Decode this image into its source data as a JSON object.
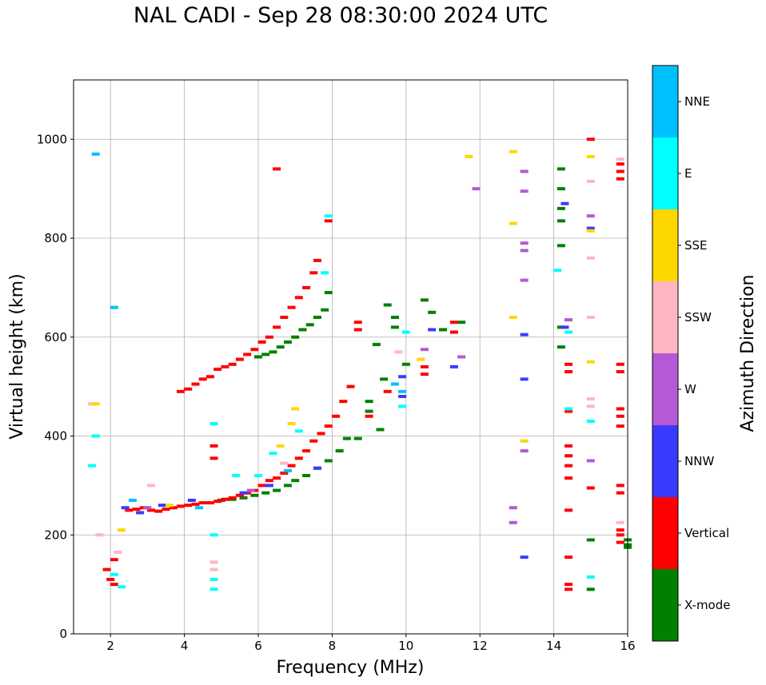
{
  "figure": {
    "title": "NAL CADI - Sep 28 08:30:00 2024 UTC"
  },
  "colorbar": {
    "label": "Azimuth Direction",
    "categories": [
      {
        "name": "X-mode",
        "color": "#008000"
      },
      {
        "name": "Vertical",
        "color": "#ff0000"
      },
      {
        "name": "NNW",
        "color": "#3a3aff"
      },
      {
        "name": "W",
        "color": "#b559d6"
      },
      {
        "name": "SSW",
        "color": "#ffb6c1"
      },
      {
        "name": "SSE",
        "color": "#ffd700"
      },
      {
        "name": "E",
        "color": "#00ffff"
      },
      {
        "name": "NNE",
        "color": "#00bfff"
      }
    ]
  },
  "chart_data": {
    "type": "scatter",
    "title": "NAL CADI - Sep 28 08:30:00 2024 UTC",
    "xlabel": "Frequency (MHz)",
    "ylabel": "Virtual height (km)",
    "xlim": [
      1,
      16
    ],
    "ylim": [
      0,
      1120
    ],
    "xticks": [
      2,
      4,
      6,
      8,
      10,
      12,
      14,
      16
    ],
    "yticks": [
      0,
      200,
      400,
      600,
      800,
      1000
    ],
    "grid": true,
    "legend": "colorbar at right",
    "series": [
      {
        "name": "X-mode",
        "color": "#008000",
        "points": [
          [
            5.0,
            270
          ],
          [
            5.3,
            272
          ],
          [
            5.6,
            275
          ],
          [
            5.9,
            280
          ],
          [
            6.2,
            285
          ],
          [
            6.5,
            290
          ],
          [
            6.8,
            300
          ],
          [
            7.0,
            310
          ],
          [
            7.3,
            320
          ],
          [
            7.6,
            335
          ],
          [
            7.9,
            350
          ],
          [
            8.2,
            370
          ],
          [
            8.4,
            395
          ],
          [
            8.7,
            395
          ],
          [
            6.0,
            560
          ],
          [
            6.2,
            565
          ],
          [
            6.4,
            570
          ],
          [
            6.6,
            580
          ],
          [
            6.8,
            590
          ],
          [
            7.0,
            600
          ],
          [
            7.2,
            615
          ],
          [
            7.4,
            625
          ],
          [
            7.6,
            640
          ],
          [
            7.8,
            655
          ],
          [
            7.9,
            690
          ],
          [
            9.0,
            470
          ],
          [
            9.0,
            450
          ],
          [
            9.2,
            585
          ],
          [
            9.3,
            413
          ],
          [
            9.4,
            515
          ],
          [
            9.5,
            665
          ],
          [
            9.7,
            640
          ],
          [
            9.7,
            620
          ],
          [
            10.0,
            545
          ],
          [
            10.5,
            675
          ],
          [
            10.7,
            650
          ],
          [
            11.0,
            615
          ],
          [
            11.5,
            630
          ],
          [
            14.2,
            940
          ],
          [
            14.2,
            900
          ],
          [
            14.2,
            860
          ],
          [
            14.2,
            835
          ],
          [
            14.2,
            785
          ],
          [
            14.2,
            620
          ],
          [
            14.2,
            580
          ],
          [
            15.0,
            190
          ],
          [
            15.0,
            90
          ],
          [
            16.0,
            190
          ],
          [
            16.0,
            180
          ],
          [
            16.0,
            175
          ]
        ]
      },
      {
        "name": "Vertical",
        "color": "#ff0000",
        "points": [
          [
            2.5,
            250
          ],
          [
            2.7,
            252
          ],
          [
            2.9,
            255
          ],
          [
            3.1,
            250
          ],
          [
            3.3,
            248
          ],
          [
            3.5,
            252
          ],
          [
            3.7,
            255
          ],
          [
            3.9,
            258
          ],
          [
            4.1,
            260
          ],
          [
            4.3,
            262
          ],
          [
            4.5,
            265
          ],
          [
            4.7,
            265
          ],
          [
            4.9,
            268
          ],
          [
            5.1,
            272
          ],
          [
            5.3,
            275
          ],
          [
            5.5,
            280
          ],
          [
            5.7,
            285
          ],
          [
            5.9,
            290
          ],
          [
            6.1,
            300
          ],
          [
            6.3,
            310
          ],
          [
            6.5,
            315
          ],
          [
            6.7,
            325
          ],
          [
            6.9,
            340
          ],
          [
            7.1,
            355
          ],
          [
            7.3,
            370
          ],
          [
            7.5,
            390
          ],
          [
            7.7,
            405
          ],
          [
            7.9,
            420
          ],
          [
            8.1,
            440
          ],
          [
            8.3,
            470
          ],
          [
            8.5,
            500
          ],
          [
            8.7,
            615
          ],
          [
            8.7,
            630
          ],
          [
            3.9,
            490
          ],
          [
            4.1,
            495
          ],
          [
            4.3,
            505
          ],
          [
            4.5,
            515
          ],
          [
            4.7,
            520
          ],
          [
            4.9,
            535
          ],
          [
            5.1,
            540
          ],
          [
            5.3,
            545
          ],
          [
            5.5,
            555
          ],
          [
            5.7,
            565
          ],
          [
            5.9,
            575
          ],
          [
            6.1,
            590
          ],
          [
            6.3,
            600
          ],
          [
            6.5,
            620
          ],
          [
            6.7,
            640
          ],
          [
            6.9,
            660
          ],
          [
            7.1,
            680
          ],
          [
            7.3,
            700
          ],
          [
            7.5,
            730
          ],
          [
            7.6,
            755
          ],
          [
            1.9,
            130
          ],
          [
            2.0,
            110
          ],
          [
            2.1,
            100
          ],
          [
            2.1,
            150
          ],
          [
            4.8,
            380
          ],
          [
            4.8,
            355
          ],
          [
            6.5,
            940
          ],
          [
            7.9,
            835
          ],
          [
            9.0,
            440
          ],
          [
            9.5,
            490
          ],
          [
            10.5,
            540
          ],
          [
            10.5,
            525
          ],
          [
            11.3,
            630
          ],
          [
            11.3,
            610
          ],
          [
            14.4,
            545
          ],
          [
            14.4,
            530
          ],
          [
            14.4,
            450
          ],
          [
            14.4,
            380
          ],
          [
            14.4,
            360
          ],
          [
            14.4,
            340
          ],
          [
            14.4,
            315
          ],
          [
            14.4,
            250
          ],
          [
            14.4,
            155
          ],
          [
            14.4,
            100
          ],
          [
            14.4,
            90
          ],
          [
            15.0,
            1000
          ],
          [
            15.0,
            295
          ],
          [
            15.8,
            950
          ],
          [
            15.8,
            935
          ],
          [
            15.8,
            920
          ],
          [
            15.8,
            545
          ],
          [
            15.8,
            530
          ],
          [
            15.8,
            455
          ],
          [
            15.8,
            440
          ],
          [
            15.8,
            420
          ],
          [
            15.8,
            300
          ],
          [
            15.8,
            285
          ],
          [
            15.8,
            210
          ],
          [
            15.8,
            200
          ],
          [
            15.8,
            185
          ]
        ]
      },
      {
        "name": "NNW",
        "color": "#3a3aff",
        "points": [
          [
            2.4,
            255
          ],
          [
            2.8,
            245
          ],
          [
            3.4,
            260
          ],
          [
            4.2,
            270
          ],
          [
            5.6,
            285
          ],
          [
            6.3,
            300
          ],
          [
            7.6,
            335
          ],
          [
            9.9,
            520
          ],
          [
            9.9,
            480
          ],
          [
            10.7,
            615
          ],
          [
            11.3,
            540
          ],
          [
            13.2,
            605
          ],
          [
            13.2,
            515
          ],
          [
            13.2,
            155
          ],
          [
            14.3,
            870
          ],
          [
            14.3,
            620
          ],
          [
            15.0,
            820
          ]
        ]
      },
      {
        "name": "W",
        "color": "#b559d6",
        "points": [
          [
            3.0,
            255
          ],
          [
            5.8,
            290
          ],
          [
            10.5,
            575
          ],
          [
            11.9,
            900
          ],
          [
            11.5,
            560
          ],
          [
            13.2,
            935
          ],
          [
            13.2,
            895
          ],
          [
            13.2,
            790
          ],
          [
            13.2,
            775
          ],
          [
            13.2,
            715
          ],
          [
            13.2,
            370
          ],
          [
            12.9,
            255
          ],
          [
            12.9,
            225
          ],
          [
            14.4,
            635
          ],
          [
            15.0,
            845
          ],
          [
            15.0,
            350
          ]
        ]
      },
      {
        "name": "SSW",
        "color": "#ffb6c1",
        "points": [
          [
            1.5,
            465
          ],
          [
            1.7,
            200
          ],
          [
            2.2,
            165
          ],
          [
            3.1,
            300
          ],
          [
            4.8,
            145
          ],
          [
            4.8,
            130
          ],
          [
            6.7,
            345
          ],
          [
            9.8,
            570
          ],
          [
            15.0,
            915
          ],
          [
            15.0,
            760
          ],
          [
            15.0,
            640
          ],
          [
            15.0,
            475
          ],
          [
            15.0,
            460
          ],
          [
            15.8,
            960
          ],
          [
            15.8,
            225
          ]
        ]
      },
      {
        "name": "SSE",
        "color": "#ffd700",
        "points": [
          [
            1.6,
            465
          ],
          [
            2.3,
            210
          ],
          [
            3.6,
            260
          ],
          [
            6.6,
            380
          ],
          [
            6.9,
            425
          ],
          [
            7.0,
            455
          ],
          [
            10.4,
            555
          ],
          [
            11.7,
            965
          ],
          [
            12.9,
            975
          ],
          [
            12.9,
            830
          ],
          [
            12.9,
            640
          ],
          [
            13.2,
            390
          ],
          [
            15.0,
            965
          ],
          [
            15.0,
            815
          ],
          [
            15.0,
            550
          ]
        ]
      },
      {
        "name": "E",
        "color": "#00ffff",
        "points": [
          [
            1.5,
            340
          ],
          [
            1.6,
            400
          ],
          [
            2.1,
            120
          ],
          [
            2.3,
            95
          ],
          [
            4.8,
            425
          ],
          [
            4.8,
            200
          ],
          [
            4.8,
            110
          ],
          [
            4.8,
            90
          ],
          [
            5.4,
            320
          ],
          [
            6.0,
            320
          ],
          [
            6.4,
            365
          ],
          [
            7.1,
            410
          ],
          [
            7.8,
            730
          ],
          [
            7.9,
            845
          ],
          [
            9.9,
            460
          ],
          [
            10.0,
            610
          ],
          [
            14.1,
            735
          ],
          [
            14.4,
            610
          ],
          [
            14.4,
            455
          ],
          [
            15.0,
            430
          ],
          [
            15.0,
            115
          ]
        ]
      },
      {
        "name": "NNE",
        "color": "#00bfff",
        "points": [
          [
            1.6,
            970
          ],
          [
            2.1,
            660
          ],
          [
            2.6,
            270
          ],
          [
            4.4,
            255
          ],
          [
            6.8,
            330
          ],
          [
            9.9,
            490
          ],
          [
            9.7,
            505
          ]
        ]
      }
    ]
  }
}
